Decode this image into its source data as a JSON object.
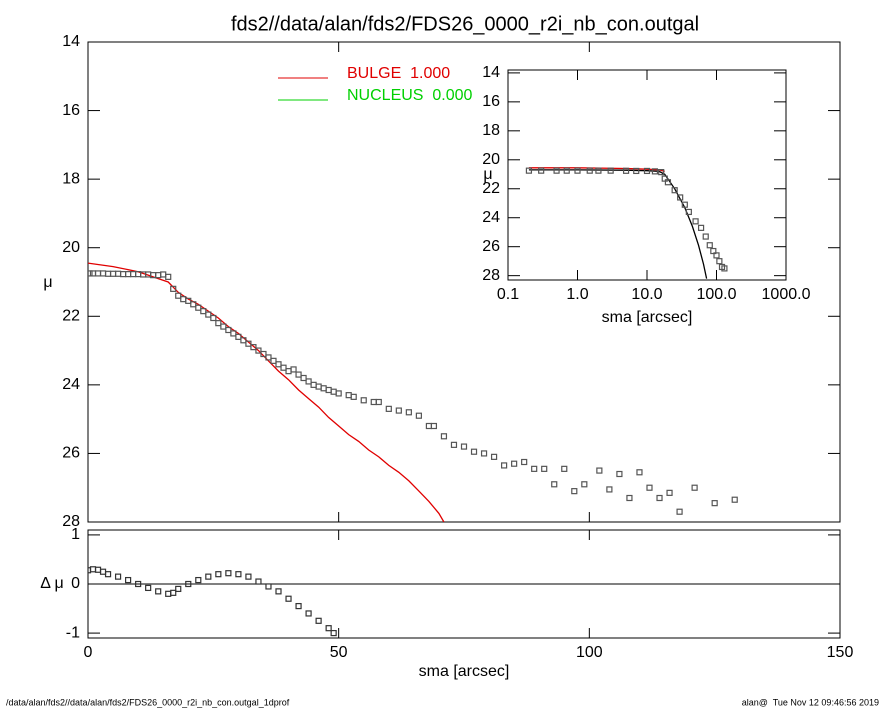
{
  "footer_left": "/data/alan/fds2//data/alan/fds2/FDS26_0000_r2i_nb_con.outgal_1dprof",
  "footer_right": "alan@  Tue Nov 12 09:46:56 2019",
  "chart_data": [
    {
      "type": "scatter",
      "title": "fds2//data/alan/fds2/FDS26_0000_r2i_nb_con.outgal",
      "ylabel": "μ",
      "xlim": [
        0,
        150
      ],
      "xticks": [
        0,
        50,
        100,
        150
      ],
      "xtick_labels": false,
      "ylim": [
        14,
        28
      ],
      "yticks": [
        14,
        16,
        18,
        20,
        22,
        24,
        26,
        28
      ],
      "y_inverted": true,
      "marker_color": "#555555",
      "x": [
        0.3,
        1,
        2,
        3,
        4,
        5,
        6,
        7,
        8,
        9,
        10,
        11,
        12,
        13,
        14,
        15,
        16,
        17,
        18,
        19,
        20,
        21,
        22,
        23,
        24,
        25,
        26,
        27,
        28,
        29,
        30,
        31,
        32,
        33,
        34,
        35,
        36,
        37,
        38,
        39,
        40,
        41,
        42,
        43,
        44,
        45,
        46,
        47,
        48,
        49,
        50,
        52,
        53,
        55,
        57,
        58,
        60,
        62,
        64,
        66,
        68,
        69,
        71,
        73,
        75,
        77,
        79,
        81,
        83,
        85,
        87,
        89,
        91,
        93,
        95,
        97,
        99,
        102,
        104,
        106,
        108,
        110,
        112,
        114,
        116,
        118,
        121,
        125,
        129
      ],
      "values": [
        20.75,
        20.75,
        20.75,
        20.75,
        20.76,
        20.76,
        20.76,
        20.77,
        20.77,
        20.77,
        20.77,
        20.78,
        20.78,
        20.8,
        20.8,
        20.78,
        20.85,
        21.2,
        21.4,
        21.5,
        21.55,
        21.65,
        21.75,
        21.85,
        21.95,
        22.05,
        22.2,
        22.3,
        22.4,
        22.5,
        22.6,
        22.7,
        22.8,
        22.9,
        23.0,
        23.1,
        23.2,
        23.3,
        23.4,
        23.5,
        23.6,
        23.55,
        23.7,
        23.8,
        23.9,
        24.0,
        24.05,
        24.1,
        24.15,
        24.2,
        24.25,
        24.3,
        24.35,
        24.45,
        24.5,
        24.5,
        24.7,
        24.75,
        24.8,
        24.9,
        25.2,
        25.2,
        25.5,
        25.75,
        25.8,
        25.95,
        26.0,
        26.1,
        26.35,
        26.3,
        26.25,
        26.45,
        26.45,
        26.9,
        26.45,
        27.1,
        26.9,
        26.5,
        27.05,
        26.6,
        27.3,
        26.55,
        27.0,
        27.3,
        27.15,
        27.7,
        27.0,
        27.45,
        27.35
      ],
      "series": [
        {
          "name": "BULGE  1.000",
          "color": "#e00000",
          "x": [
            0,
            5,
            10,
            12,
            14,
            16,
            18,
            20,
            22,
            24,
            26,
            28,
            30,
            32,
            34,
            36,
            38,
            40,
            42,
            44,
            46,
            48,
            50,
            52,
            54,
            56,
            58,
            60,
            62,
            64,
            66,
            68,
            70,
            71
          ],
          "values": [
            20.45,
            20.55,
            20.7,
            20.8,
            20.9,
            21.0,
            21.3,
            21.5,
            21.65,
            21.85,
            22.05,
            22.3,
            22.5,
            22.75,
            23.0,
            23.3,
            23.6,
            23.85,
            24.15,
            24.4,
            24.65,
            24.95,
            25.2,
            25.45,
            25.65,
            25.9,
            26.1,
            26.35,
            26.55,
            26.8,
            27.1,
            27.4,
            27.75,
            28.0
          ]
        },
        {
          "name": "NUCLEUS  0.000",
          "color": "#00d000",
          "x": [],
          "values": []
        }
      ]
    },
    {
      "type": "scatter",
      "ylabel": "Δ μ",
      "xlabel": "sma [arcsec]",
      "xlim": [
        0,
        150
      ],
      "xticks": [
        0,
        50,
        100,
        150
      ],
      "xtick_labels": true,
      "ylim": [
        -1.1,
        1.1
      ],
      "yticks": [
        1,
        0,
        -1
      ],
      "zero_line": true,
      "marker_color": "#333333",
      "x": [
        0,
        1,
        2,
        3,
        4,
        6,
        8,
        10,
        12,
        14,
        16,
        17,
        18,
        20,
        22,
        24,
        26,
        28,
        30,
        32,
        34,
        36,
        38,
        40,
        42,
        44,
        46,
        48,
        49
      ],
      "values": [
        0.28,
        0.3,
        0.29,
        0.25,
        0.2,
        0.15,
        0.08,
        0.0,
        -0.08,
        -0.15,
        -0.2,
        -0.18,
        -0.1,
        0.0,
        0.08,
        0.15,
        0.2,
        0.22,
        0.2,
        0.15,
        0.05,
        -0.05,
        -0.15,
        -0.3,
        -0.45,
        -0.6,
        -0.75,
        -0.9,
        -1.0
      ]
    },
    {
      "type": "scatter",
      "ylabel": "μ",
      "xlabel": "sma [arcsec]",
      "log_x": true,
      "xlim": [
        0.1,
        1000
      ],
      "xticks": [
        0.1,
        {
          "value": 1,
          "label": "1.0"
        },
        {
          "value": 10,
          "label": "10.0"
        },
        {
          "value": 100,
          "label": "100.0"
        },
        {
          "value": 1000,
          "label": "1000.0"
        }
      ],
      "xtick_labels": true,
      "ylim": [
        13.8,
        28.3
      ],
      "yticks": [
        14,
        16,
        18,
        20,
        22,
        24,
        26,
        28
      ],
      "y_inverted": true,
      "marker_color": "#555555",
      "x": [
        0.2,
        0.3,
        0.5,
        0.7,
        1,
        1.5,
        2,
        3,
        5,
        7,
        10,
        13,
        16,
        18,
        20,
        25,
        30,
        35,
        40,
        50,
        60,
        70,
        80,
        90,
        100,
        110,
        120,
        130
      ],
      "values": [
        20.75,
        20.75,
        20.75,
        20.75,
        20.75,
        20.75,
        20.75,
        20.75,
        20.76,
        20.77,
        20.77,
        20.8,
        20.85,
        21.3,
        21.55,
        22.1,
        22.6,
        23.1,
        23.6,
        24.25,
        24.7,
        25.3,
        25.9,
        26.3,
        26.6,
        27.0,
        27.4,
        27.5
      ],
      "series": [
        {
          "color": "#e00000",
          "x": [
            0.2,
            1,
            5,
            10,
            15,
            18
          ],
          "values": [
            20.55,
            20.55,
            20.6,
            20.65,
            20.7,
            20.8
          ]
        },
        {
          "color": "#000000",
          "x": [
            0.2,
            1,
            5,
            10,
            15,
            18,
            25,
            35,
            45,
            55,
            65,
            72
          ],
          "values": [
            20.7,
            20.7,
            20.72,
            20.75,
            20.8,
            21.0,
            22.0,
            23.3,
            24.6,
            25.9,
            27.2,
            28.2
          ]
        }
      ]
    }
  ]
}
